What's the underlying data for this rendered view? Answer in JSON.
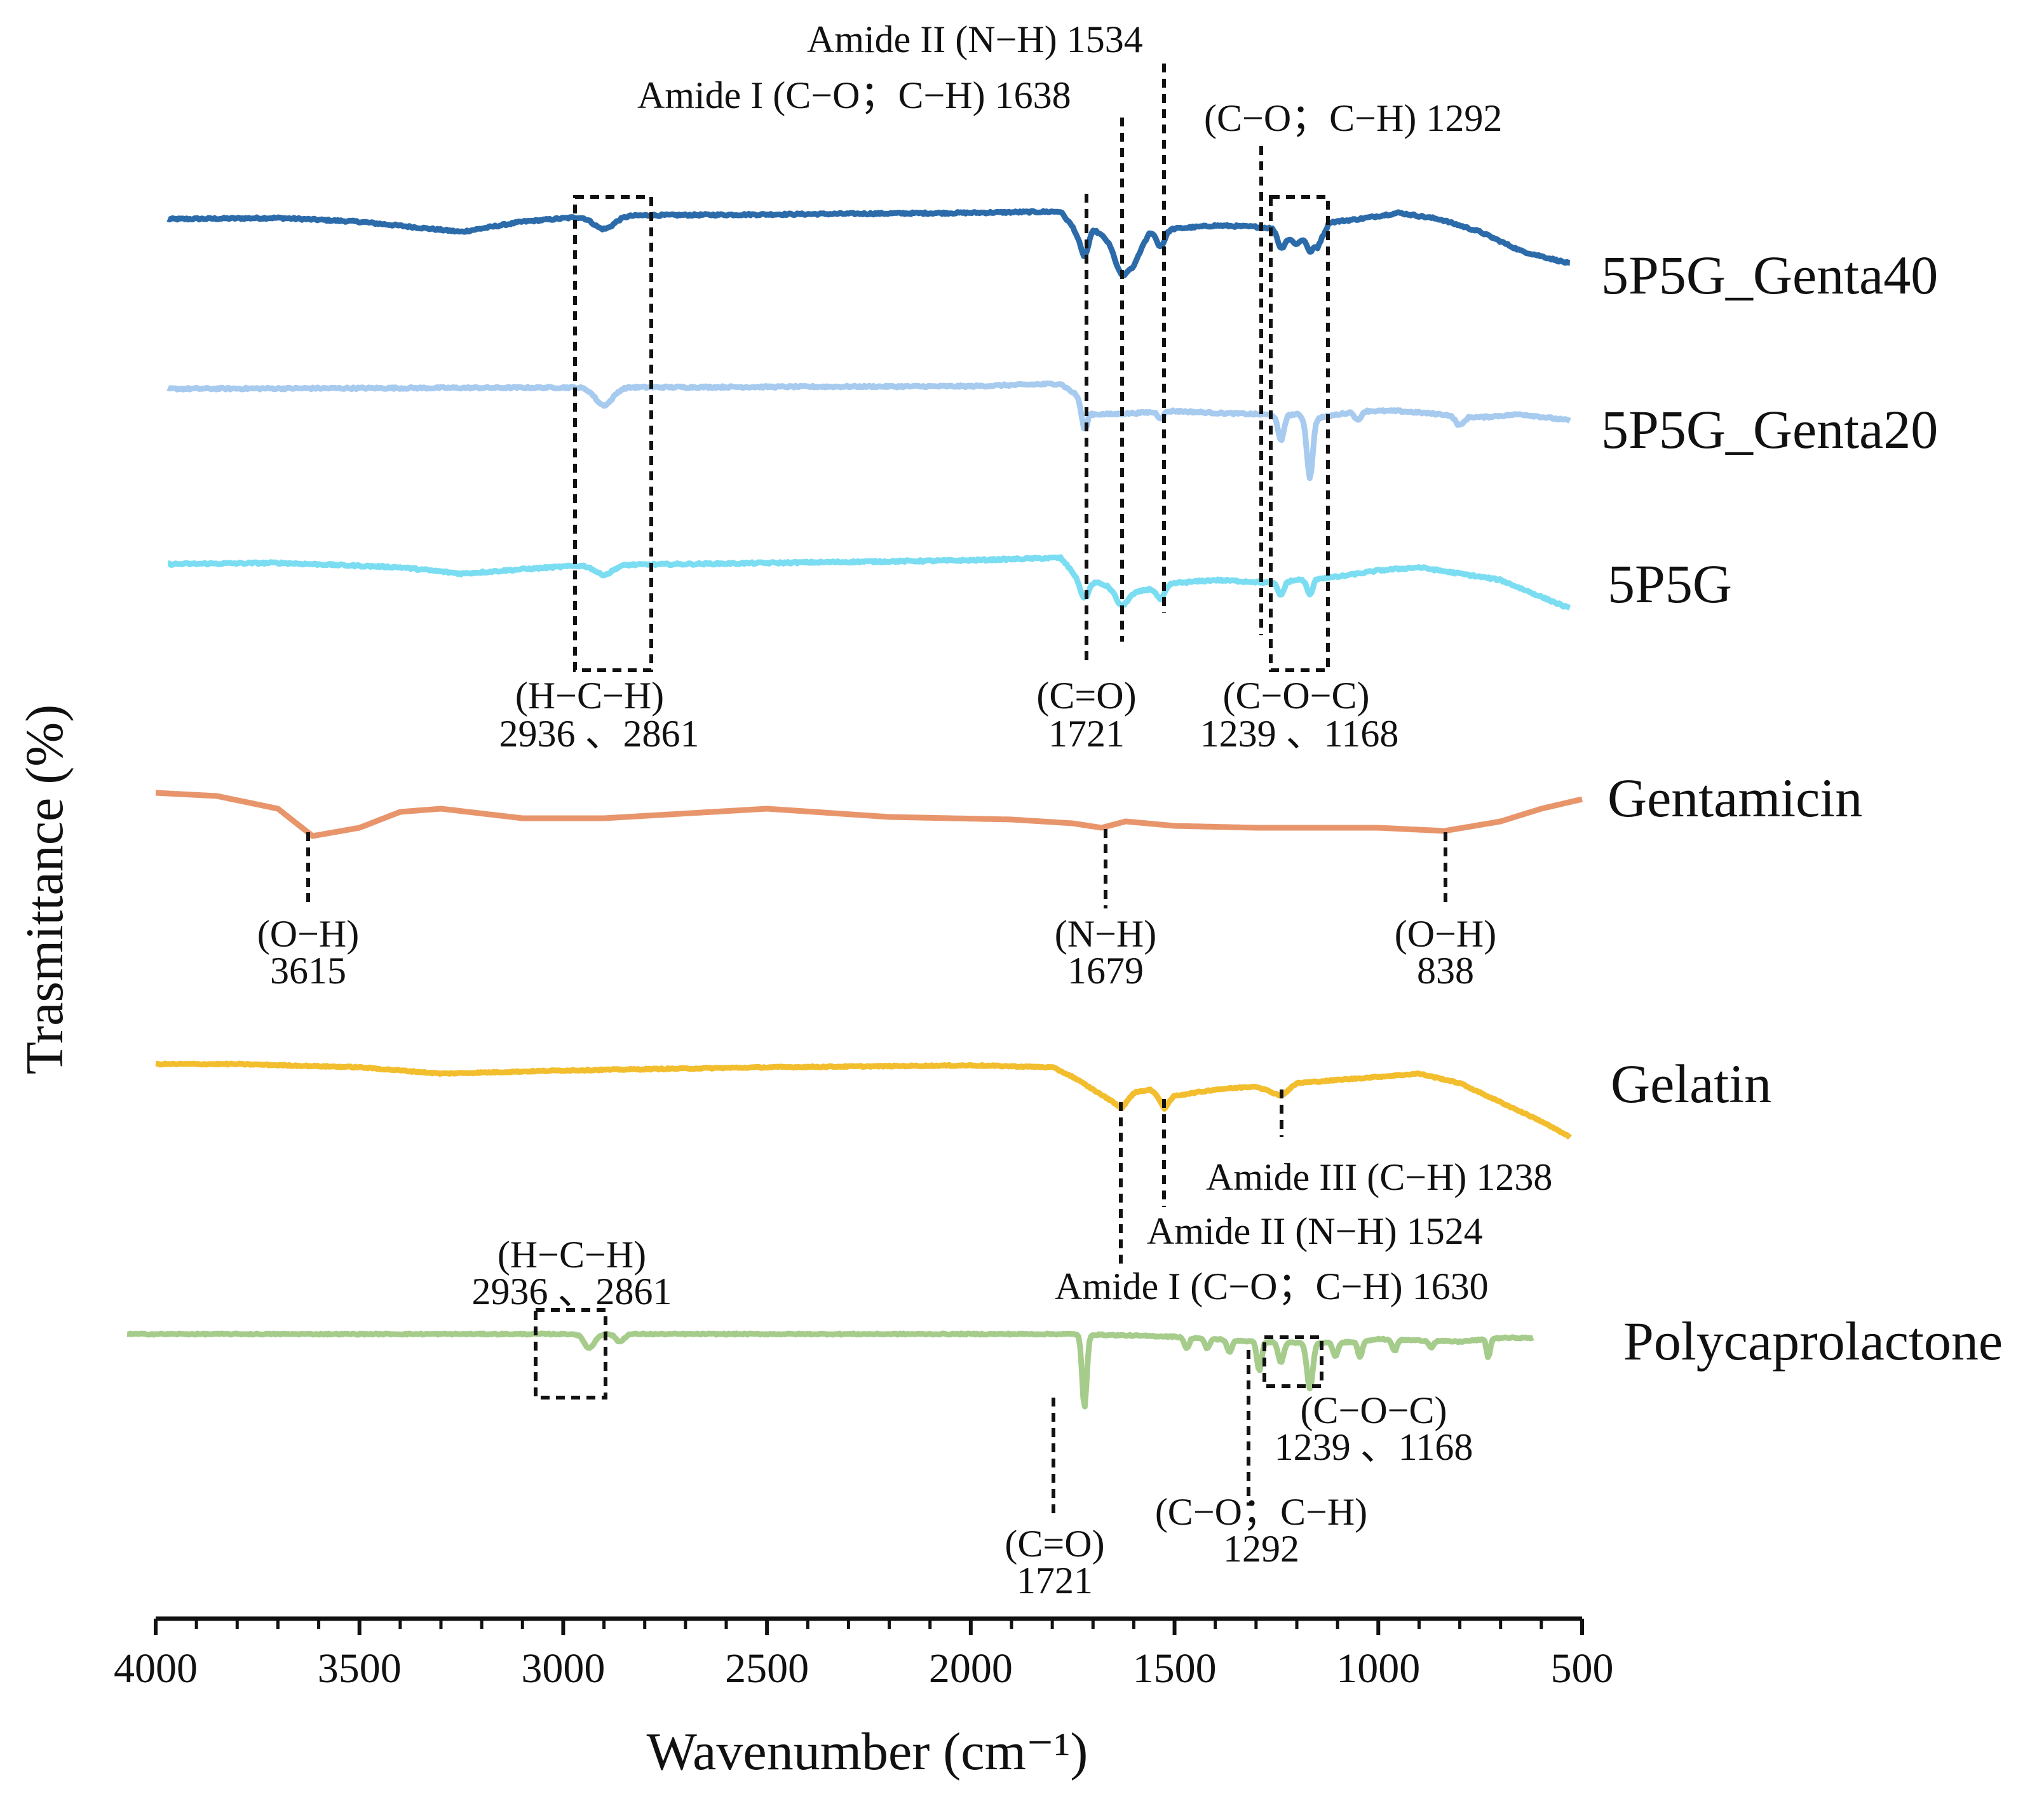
{
  "chart_data": {
    "type": "line",
    "title": "",
    "xlabel": "Wavenumber (cm⁻¹)",
    "ylabel": "Trasmittance (%)",
    "xlim": [
      4000,
      500
    ],
    "x_ticks": [
      "4000",
      "3500",
      "3000",
      "2500",
      "2000",
      "1500",
      "1000",
      "500"
    ],
    "grid": false,
    "legend": "labels at right end of each trace",
    "series": [
      {
        "name": "5P5G_Genta40",
        "color": "#2C6BAA",
        "x_range": [
          3970,
          530
        ],
        "noise": 3,
        "baseline": [
          [
            3970,
            0
          ],
          [
            3700,
            2
          ],
          [
            3500,
            -4
          ],
          [
            3250,
            -20
          ],
          [
            3100,
            -4
          ],
          [
            2950,
            4
          ],
          [
            2800,
            6
          ],
          [
            2000,
            10
          ],
          [
            1780,
            12
          ],
          [
            1740,
            -20
          ],
          [
            1700,
            -15
          ],
          [
            1660,
            -35
          ],
          [
            1600,
            -70
          ],
          [
            1560,
            -20
          ],
          [
            1500,
            -15
          ],
          [
            1400,
            -10
          ],
          [
            1300,
            -12
          ],
          [
            1250,
            -15
          ],
          [
            1200,
            -40
          ],
          [
            1168,
            -20
          ],
          [
            1150,
            -45
          ],
          [
            1120,
            -5
          ],
          [
            1050,
            0
          ],
          [
            950,
            10
          ],
          [
            850,
            0
          ],
          [
            750,
            -20
          ],
          [
            650,
            -50
          ],
          [
            530,
            -70
          ]
        ],
        "bands": [
          [
            2900,
            -20,
            35
          ],
          [
            1721,
            -40,
            14
          ],
          [
            1630,
            -35,
            22
          ],
          [
            1534,
            -25,
            14
          ],
          [
            1239,
            -25,
            12
          ],
          [
            1168,
            -30,
            10
          ]
        ]
      },
      {
        "name": "5P5G_Genta20",
        "color": "#A7CAEF",
        "x_range": [
          3970,
          530
        ],
        "noise": 3,
        "baseline": [
          [
            3970,
            0
          ],
          [
            2000,
            4
          ],
          [
            1780,
            8
          ],
          [
            1740,
            -10
          ],
          [
            1700,
            -40
          ],
          [
            1650,
            -40
          ],
          [
            1500,
            -35
          ],
          [
            1400,
            -38
          ],
          [
            1300,
            -40
          ],
          [
            1240,
            -42
          ],
          [
            1200,
            -40
          ],
          [
            1168,
            -50
          ],
          [
            1140,
            -45
          ],
          [
            1050,
            -35
          ],
          [
            950,
            -35
          ],
          [
            850,
            -40
          ],
          [
            750,
            -45
          ],
          [
            650,
            -40
          ],
          [
            530,
            -50
          ]
        ],
        "bands": [
          [
            2900,
            -28,
            30
          ],
          [
            1721,
            -40,
            10
          ],
          [
            1534,
            -10,
            10
          ],
          [
            1239,
            -40,
            10
          ],
          [
            1168,
            -90,
            10
          ],
          [
            1050,
            -15,
            10
          ],
          [
            800,
            -15,
            15
          ]
        ]
      },
      {
        "name": "5P5G",
        "color": "#7BDDF1",
        "x_range": [
          3970,
          530
        ],
        "noise": 3,
        "baseline": [
          [
            3970,
            0
          ],
          [
            3700,
            2
          ],
          [
            3400,
            -5
          ],
          [
            3250,
            -15
          ],
          [
            3100,
            -8
          ],
          [
            2950,
            -2
          ],
          [
            2000,
            6
          ],
          [
            1780,
            10
          ],
          [
            1740,
            -20
          ],
          [
            1660,
            -35
          ],
          [
            1600,
            -45
          ],
          [
            1500,
            -30
          ],
          [
            1400,
            -25
          ],
          [
            1300,
            -28
          ],
          [
            1250,
            -30
          ],
          [
            1200,
            -25
          ],
          [
            1100,
            -20
          ],
          [
            1000,
            -10
          ],
          [
            900,
            -5
          ],
          [
            800,
            -15
          ],
          [
            700,
            -25
          ],
          [
            530,
            -70
          ]
        ],
        "bands": [
          [
            2900,
            -15,
            30
          ],
          [
            1721,
            -30,
            14
          ],
          [
            1630,
            -25,
            20
          ],
          [
            1534,
            -20,
            14
          ],
          [
            1239,
            -20,
            10
          ],
          [
            1168,
            -25,
            10
          ]
        ]
      },
      {
        "name": "Gentamicin",
        "color": "#E8956C",
        "x_range": [
          4000,
          500
        ],
        "noise": 0,
        "baseline": [
          [
            4000,
            0
          ],
          [
            3850,
            -5
          ],
          [
            3700,
            -25
          ],
          [
            3615,
            -68
          ],
          [
            3500,
            -55
          ],
          [
            3400,
            -30
          ],
          [
            3300,
            -25
          ],
          [
            3100,
            -40
          ],
          [
            2900,
            -40
          ],
          [
            2500,
            -25
          ],
          [
            2200,
            -38
          ],
          [
            1900,
            -42
          ],
          [
            1750,
            -48
          ],
          [
            1679,
            -55
          ],
          [
            1620,
            -45
          ],
          [
            1500,
            -52
          ],
          [
            1300,
            -55
          ],
          [
            1000,
            -55
          ],
          [
            838,
            -60
          ],
          [
            700,
            -45
          ],
          [
            600,
            -25
          ],
          [
            500,
            -10
          ]
        ],
        "bands": []
      },
      {
        "name": "Gelatin",
        "color": "#F2BE2E",
        "x_range": [
          4000,
          530
        ],
        "noise": 2,
        "baseline": [
          [
            4000,
            0
          ],
          [
            3800,
            0
          ],
          [
            3500,
            -5
          ],
          [
            3300,
            -15
          ],
          [
            3000,
            -10
          ],
          [
            2500,
            -5
          ],
          [
            2000,
            -2
          ],
          [
            1800,
            -5
          ],
          [
            1750,
            -20
          ],
          [
            1700,
            -40
          ],
          [
            1650,
            -60
          ],
          [
            1630,
            -70
          ],
          [
            1600,
            -45
          ],
          [
            1560,
            -40
          ],
          [
            1524,
            -60
          ],
          [
            1500,
            -50
          ],
          [
            1400,
            -40
          ],
          [
            1300,
            -35
          ],
          [
            1238,
            -50
          ],
          [
            1200,
            -30
          ],
          [
            1000,
            -20
          ],
          [
            900,
            -15
          ],
          [
            800,
            -30
          ],
          [
            700,
            -60
          ],
          [
            600,
            -90
          ],
          [
            530,
            -115
          ]
        ],
        "bands": [
          [
            1524,
            -10,
            12
          ]
        ]
      },
      {
        "name": "Polycaprolactone",
        "color": "#A6CC8C",
        "x_range": [
          4070,
          620
        ],
        "noise": 2,
        "baseline": [
          [
            4070,
            0
          ],
          [
            1900,
            0
          ],
          [
            1760,
            0
          ],
          [
            1500,
            -4
          ],
          [
            1400,
            -8
          ],
          [
            1300,
            -12
          ],
          [
            1200,
            -14
          ],
          [
            1100,
            -14
          ],
          [
            1000,
            -8
          ],
          [
            800,
            -12
          ],
          [
            700,
            -6
          ],
          [
            620,
            -6
          ]
        ],
        "bands": [
          [
            2936,
            -22,
            18
          ],
          [
            2861,
            -12,
            14
          ],
          [
            1721,
            -115,
            8
          ],
          [
            1470,
            -18,
            8
          ],
          [
            1420,
            -16,
            8
          ],
          [
            1365,
            -20,
            8
          ],
          [
            1292,
            -45,
            8
          ],
          [
            1239,
            -32,
            9
          ],
          [
            1168,
            -72,
            10
          ],
          [
            1105,
            -22,
            8
          ],
          [
            1045,
            -25,
            8
          ],
          [
            960,
            -18,
            8
          ],
          [
            870,
            -10,
            8
          ],
          [
            730,
            -30,
            6
          ]
        ]
      }
    ],
    "annotations": [
      {
        "line1": "Amide II (N−H) 1534"
      },
      {
        "line1": "Amide I (C−O；C−H) 1638"
      },
      {
        "line1": "(C−O；C−H) 1292"
      },
      {
        "line1": "(H−C−H)",
        "line2": "2936 、2861"
      },
      {
        "line1": "(C=O)",
        "line2": "1721"
      },
      {
        "line1": "(C−O−C)",
        "line2": "1239 、1168"
      },
      {
        "line1": "(O−H)",
        "line2": "3615"
      },
      {
        "line1": "(N−H)",
        "line2": "1679"
      },
      {
        "line1": "(O−H)",
        "line2": "838"
      },
      {
        "line1": "Amide III (C−H) 1238"
      },
      {
        "line1": "Amide II (N−H) 1524"
      },
      {
        "line1": "Amide I (C−O；C−H) 1630"
      },
      {
        "line1": "(H−C−H)",
        "line2": "2936 、2861"
      },
      {
        "line1": "(C−O−C)",
        "line2": "1239 、1168"
      },
      {
        "line1": "(C−O；C−H)",
        "line2": "1292"
      },
      {
        "line1": "(C=O)",
        "line2": "1721"
      }
    ]
  }
}
